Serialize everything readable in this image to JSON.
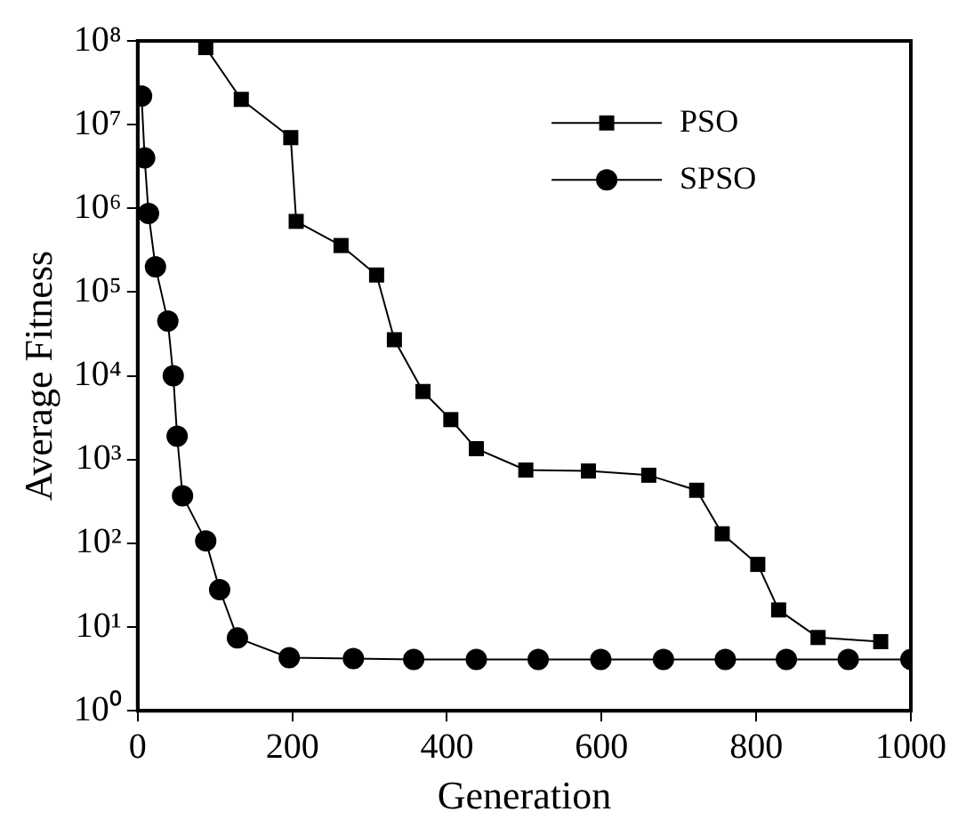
{
  "chart_data": {
    "type": "line",
    "xlabel": "Generation",
    "ylabel": "Average Fitness",
    "log": "y",
    "grid": false,
    "legend": "top right",
    "xlim": [
      0,
      1000
    ],
    "xticks": [
      0,
      200,
      400,
      600,
      800,
      1000
    ],
    "ylim": [
      1,
      100000000
    ],
    "yticks": [
      {
        "value": 1,
        "label": "10⁰"
      },
      {
        "value": 10,
        "label": "10¹"
      },
      {
        "value": 100,
        "label": "10²"
      },
      {
        "value": 1000,
        "label": "10³"
      },
      {
        "value": 10000,
        "label": "10⁴"
      },
      {
        "value": 100000,
        "label": "10⁵"
      },
      {
        "value": 1000000,
        "label": "10⁶"
      },
      {
        "value": 10000000,
        "label": "10⁷"
      },
      {
        "value": 100000000,
        "label": "10⁸"
      }
    ],
    "series": [
      {
        "name": "PSO",
        "color": "#000000",
        "marker": "square",
        "x": [
          88,
          134,
          198,
          205,
          263,
          309,
          332,
          369,
          405,
          438,
          502,
          583,
          661,
          723,
          756,
          802,
          829,
          880,
          961
        ],
        "values": [
          83000000,
          20000000,
          7000000,
          700000,
          360000,
          160000,
          27000,
          6500,
          3000,
          1350,
          750,
          730,
          650,
          430,
          130,
          56,
          16,
          7.5,
          6.7
        ]
      },
      {
        "name": "SPSO",
        "color": "#000000",
        "marker": "circle",
        "x": [
          5,
          9,
          14,
          23,
          39,
          46,
          51,
          58,
          88,
          106,
          129,
          196,
          279,
          357,
          438,
          518,
          599,
          680,
          760,
          839,
          919,
          1000
        ],
        "values": [
          22000000,
          4000000,
          870000,
          200000,
          45000,
          10000,
          1900,
          370,
          107,
          28,
          7.4,
          4.3,
          4.2,
          4.1,
          4.1,
          4.1,
          4.1,
          4.1,
          4.1,
          4.1,
          4.1,
          4.1
        ]
      }
    ]
  }
}
